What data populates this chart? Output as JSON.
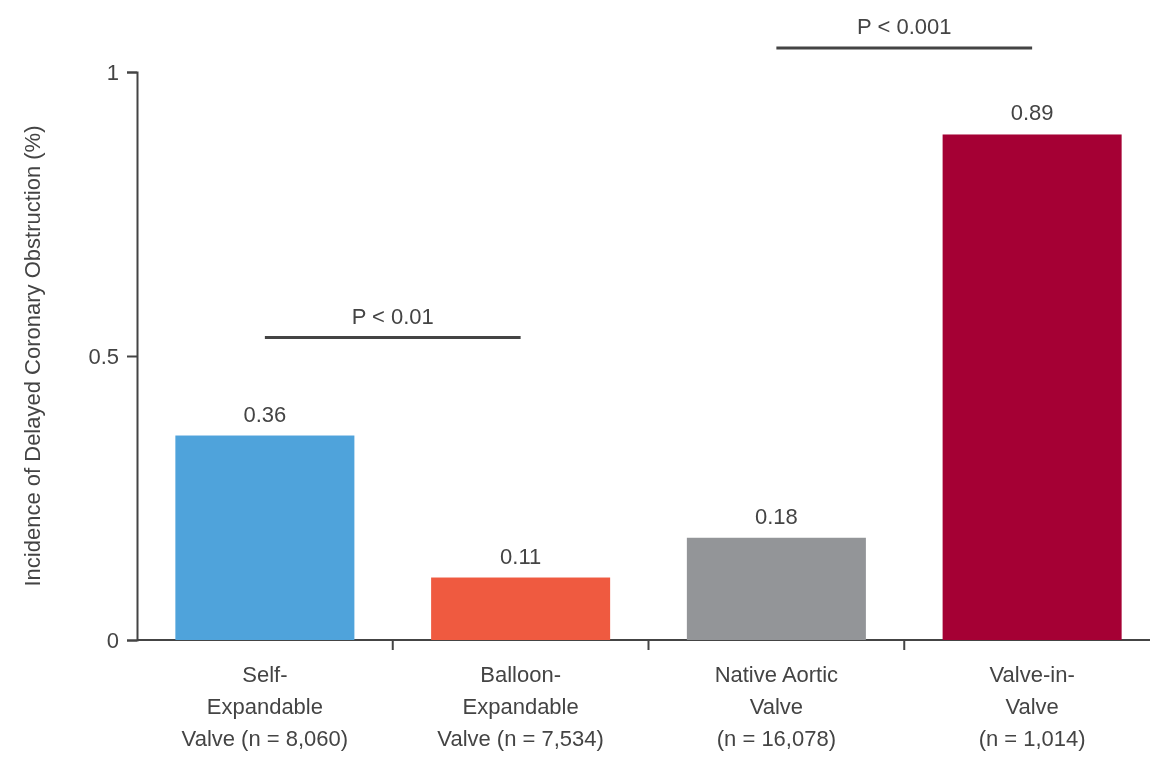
{
  "chart_data": {
    "type": "bar",
    "ylabel": "Incidence of Delayed Coronary Obstruction (%)",
    "categories": [
      "Self-\nExpandable\nValve (n = 8,060)",
      "Balloon-\nExpandable\nValve (n = 7,534)",
      "Native Aortic\nValve\n(n = 16,078)",
      "Valve-in-\nValve\n(n = 1,014)"
    ],
    "values": [
      0.36,
      0.11,
      0.18,
      0.89
    ],
    "colors": [
      "#4fa3db",
      "#ef5a40",
      "#939598",
      "#a50034"
    ],
    "data_labels": true,
    "ylim": [
      0,
      1
    ],
    "yticks": [
      0,
      0.5,
      1
    ],
    "annotations": [
      "P < 0.01",
      "P < 0.001"
    ]
  }
}
